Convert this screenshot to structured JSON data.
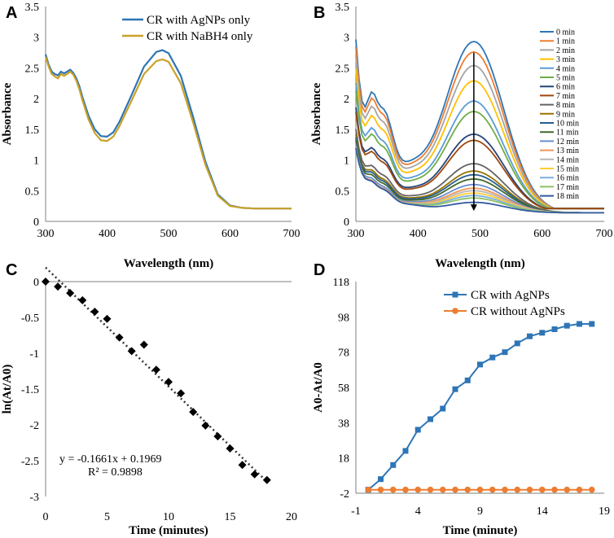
{
  "chart_data": [
    {
      "panel": "A",
      "type": "line",
      "xlabel": "Wavelength (nm)",
      "ylabel": "Absorbance",
      "xlim": [
        300,
        700
      ],
      "ylim": [
        0,
        3.5
      ],
      "xticks": [
        300,
        400,
        500,
        600,
        700
      ],
      "yticks": [
        0,
        0.5,
        1,
        1.5,
        2,
        2.5,
        3,
        3.5
      ],
      "ytick_labels": [
        "0",
        "0.5",
        "1",
        "1.5",
        "2",
        "2.5",
        "3",
        "3.5"
      ],
      "legend": {
        "placement": "top-right",
        "entries": [
          "CR with AgNPs  only",
          "CR with NaBH4 only"
        ]
      },
      "series": [
        {
          "name": "CR with AgNPs  only",
          "color": "#2e75b6",
          "x": [
            300,
            305,
            310,
            315,
            320,
            325,
            330,
            335,
            340,
            345,
            350,
            355,
            360,
            370,
            380,
            390,
            400,
            410,
            420,
            440,
            460,
            480,
            490,
            500,
            520,
            540,
            560,
            580,
            600,
            620,
            640,
            660,
            680,
            700
          ],
          "y": [
            2.72,
            2.55,
            2.44,
            2.4,
            2.38,
            2.44,
            2.41,
            2.44,
            2.47,
            2.42,
            2.33,
            2.2,
            2.02,
            1.72,
            1.5,
            1.39,
            1.38,
            1.45,
            1.62,
            2.06,
            2.52,
            2.76,
            2.79,
            2.74,
            2.37,
            1.7,
            0.97,
            0.44,
            0.26,
            0.22,
            0.21,
            0.21,
            0.21,
            0.21
          ]
        },
        {
          "name": "CR with NaBH4 only",
          "color": "#c9a227",
          "x": [
            300,
            305,
            310,
            315,
            320,
            325,
            330,
            335,
            340,
            345,
            350,
            355,
            360,
            370,
            380,
            390,
            400,
            410,
            420,
            440,
            460,
            480,
            490,
            500,
            520,
            540,
            560,
            580,
            600,
            620,
            640,
            660,
            680,
            700
          ],
          "y": [
            2.68,
            2.52,
            2.4,
            2.36,
            2.33,
            2.4,
            2.37,
            2.4,
            2.44,
            2.39,
            2.29,
            2.15,
            1.97,
            1.66,
            1.44,
            1.32,
            1.31,
            1.38,
            1.55,
            1.97,
            2.4,
            2.61,
            2.64,
            2.6,
            2.25,
            1.61,
            0.92,
            0.42,
            0.25,
            0.22,
            0.21,
            0.21,
            0.21,
            0.21
          ]
        }
      ]
    },
    {
      "panel": "B",
      "type": "line",
      "xlabel": "Wavelength (nm)",
      "ylabel": "Absorbance",
      "xlim": [
        300,
        700
      ],
      "ylim": [
        0,
        3.5
      ],
      "xticks": [
        300,
        400,
        500,
        600,
        700
      ],
      "yticks": [
        0,
        0.5,
        1,
        1.5,
        2,
        2.5,
        3,
        3.5
      ],
      "ytick_labels": [
        "0",
        "0.5",
        "1",
        "1.5",
        "2",
        "2.5",
        "3",
        "3.5"
      ],
      "legend": {
        "placement": "right",
        "entries": [
          "0 min",
          "1 min",
          "2 min",
          "3 min",
          "4 min",
          "5 min",
          "6 min",
          "7 min",
          "8 min",
          "9 min",
          "10 min",
          "11 min",
          "12 min",
          "13 min",
          "14 min",
          "15 min",
          "16 min",
          "17 min",
          "18 min"
        ]
      },
      "series_colors": [
        "#2e75b6",
        "#ed7d31",
        "#a5a5a5",
        "#ffc000",
        "#5b9bd5",
        "#70ad47",
        "#264478",
        "#9e480e",
        "#636363",
        "#997300",
        "#255e91",
        "#43682b",
        "#698ed0",
        "#f1975a",
        "#b7b7b7",
        "#ffcd33",
        "#7cafdd",
        "#8cc168",
        "#335aa1"
      ],
      "peak_values": [
        2.79,
        2.62,
        2.4,
        2.15,
        1.82,
        1.65,
        1.28,
        1.18,
        0.8,
        0.68,
        0.62,
        0.55,
        0.46,
        0.4,
        0.36,
        0.32,
        0.28,
        0.24,
        0.17
      ],
      "arrow": {
        "from": [
          490,
          2.75
        ],
        "to": [
          490,
          0.17
        ]
      }
    },
    {
      "panel": "C",
      "type": "scatter",
      "xlabel": "Time (minutes)",
      "ylabel": "ln(At/A0)",
      "xlim": [
        0,
        20
      ],
      "ylim": [
        -3,
        0
      ],
      "xticks": [
        0,
        5,
        10,
        15,
        20
      ],
      "yticks": [
        0,
        -0.5,
        -1,
        -1.5,
        -2,
        -2.5,
        -3
      ],
      "x": [
        0,
        1,
        2,
        3,
        4,
        5,
        6,
        7,
        8,
        9,
        10,
        11,
        12,
        13,
        14,
        15,
        16,
        17,
        18
      ],
      "y": [
        0,
        -0.07,
        -0.16,
        -0.26,
        -0.42,
        -0.52,
        -0.78,
        -0.97,
        -0.88,
        -1.23,
        -1.4,
        -1.56,
        -1.82,
        -2.01,
        -2.16,
        -2.33,
        -2.56,
        -2.69,
        -2.77
      ],
      "trendline": {
        "slope": -0.1661,
        "intercept": 0.1969,
        "x_range": [
          0,
          18
        ]
      },
      "equation": "y = -0.1661x + 0.1969",
      "r_squared": "R² = 0.9898"
    },
    {
      "panel": "D",
      "type": "line",
      "xlabel": "Time (minute)",
      "ylabel": "A0-At/A0",
      "xlim": [
        -1,
        19
      ],
      "ylim": [
        -2,
        118
      ],
      "xticks": [
        -1,
        4,
        9,
        14,
        19
      ],
      "yticks": [
        -2,
        18,
        38,
        58,
        78,
        98,
        118
      ],
      "legend": {
        "placement": "top-right",
        "entries": [
          "CR with AgNPs",
          "CR without AgNPs"
        ]
      },
      "series": [
        {
          "name": "CR with AgNPs",
          "color": "#2e75b6",
          "marker": "square",
          "x": [
            0,
            1,
            2,
            3,
            4,
            5,
            6,
            7,
            8,
            9,
            10,
            11,
            12,
            13,
            14,
            15,
            16,
            17,
            18
          ],
          "y": [
            0,
            6,
            14,
            22,
            34,
            40,
            46,
            57,
            62,
            71,
            75,
            78,
            83,
            87,
            89,
            91,
            93,
            94,
            94
          ]
        },
        {
          "name": "CR without AgNPs",
          "color": "#ed7d31",
          "marker": "circle",
          "x": [
            0,
            1,
            2,
            3,
            4,
            5,
            6,
            7,
            8,
            9,
            10,
            11,
            12,
            13,
            14,
            15,
            16,
            17,
            18
          ],
          "y": [
            0,
            0,
            0,
            0,
            0,
            0,
            0,
            0,
            0,
            0,
            0,
            0,
            0,
            0,
            0,
            0,
            0,
            0,
            0
          ]
        }
      ]
    }
  ]
}
